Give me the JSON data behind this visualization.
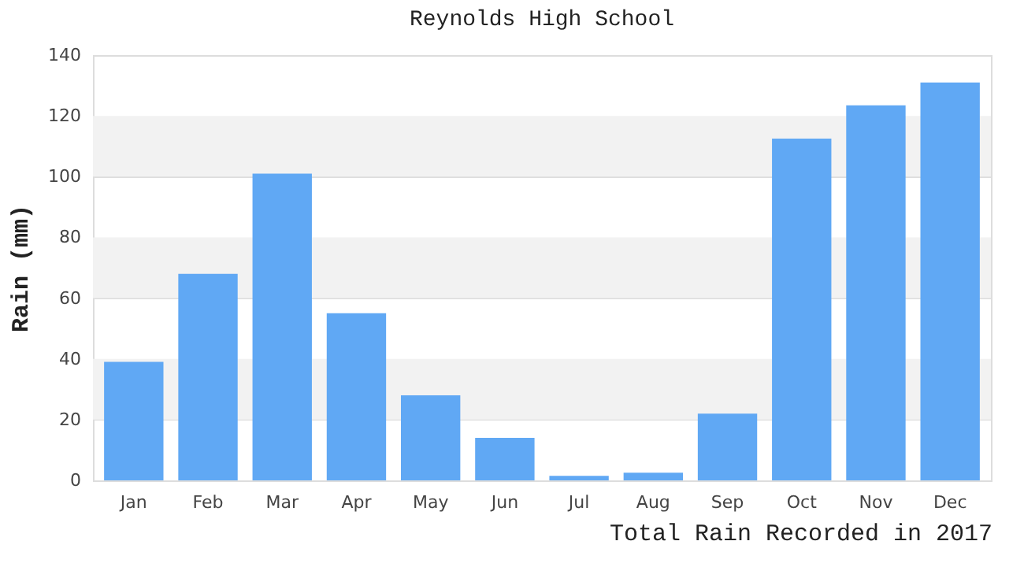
{
  "chart_data": {
    "type": "bar",
    "title": "Reynolds High School",
    "ylabel": "Rain (mm)",
    "categories": [
      "Jan",
      "Feb",
      "Mar",
      "Apr",
      "May",
      "Jun",
      "Jul",
      "Aug",
      "Sep",
      "Oct",
      "Nov",
      "Dec"
    ],
    "values": [
      39,
      68,
      101,
      55,
      28,
      14,
      1.5,
      2.5,
      22,
      112.5,
      123.5,
      131
    ],
    "color": "#60a8f4",
    "ylim": [
      0,
      140
    ],
    "yticks": [
      0,
      20,
      40,
      60,
      80,
      100,
      120,
      140
    ],
    "grid": "y",
    "bands": [
      {
        "axis": "y",
        "from": 20,
        "to": 40,
        "color": "#f2f2f2"
      },
      {
        "axis": "y",
        "from": 60,
        "to": 80,
        "color": "#f2f2f2"
      },
      {
        "axis": "y",
        "from": 100,
        "to": 120,
        "color": "#f2f2f2"
      }
    ],
    "annotations": [
      "Total Rain Recorded in 2017"
    ]
  }
}
